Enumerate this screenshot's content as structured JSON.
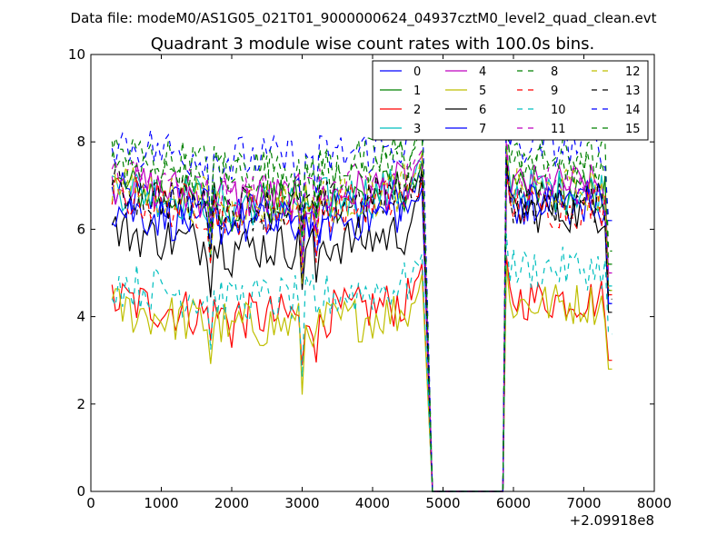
{
  "figure": {
    "suptitle": "Data file: modeM0/AS1G05_021T01_9000000624_04937cztM0_level2_quad_clean.evt"
  },
  "chart_data": {
    "type": "line",
    "title": "Quadrant 3 module wise count rates with 100.0s bins.",
    "xlabel": "",
    "ylabel": "",
    "xlim": [
      0,
      8000
    ],
    "ylim": [
      0,
      10
    ],
    "x_offset_label": "+2.09918e8",
    "x_ticks": [
      0,
      1000,
      2000,
      3000,
      4000,
      5000,
      6000,
      7000,
      8000
    ],
    "x_tick_labels": [
      "0",
      "1000",
      "2000",
      "3000",
      "4000",
      "5000",
      "6000",
      "7000",
      "8000"
    ],
    "y_ticks": [
      0,
      2,
      4,
      6,
      8,
      10
    ],
    "y_tick_labels": [
      "0",
      "2",
      "4",
      "6",
      "8",
      "10"
    ],
    "legend_position": "top-right",
    "bin_seconds": 100.0,
    "segments": [
      {
        "start": 300,
        "end": 4700
      },
      {
        "start": 4900,
        "end": 5800,
        "gap": true
      },
      {
        "start": 5900,
        "end": 7400
      }
    ],
    "series": [
      {
        "name": "0",
        "color": "#0000ff",
        "dash": "solid",
        "base1": 6.8,
        "base2": 6.6,
        "end1": 7.2,
        "end2": 4.3
      },
      {
        "name": "1",
        "color": "#008000",
        "dash": "solid",
        "base1": 7.0,
        "base2": 6.8,
        "end1": 7.4,
        "end2": 4.6
      },
      {
        "name": "2",
        "color": "#ff0000",
        "dash": "solid",
        "base1": 4.4,
        "base2": 4.4,
        "end1": 5.1,
        "end2": 3.0
      },
      {
        "name": "3",
        "color": "#00bfbf",
        "dash": "solid",
        "base1": 7.0,
        "base2": 6.9,
        "end1": 7.6,
        "end2": 4.7
      },
      {
        "name": "4",
        "color": "#bf00bf",
        "dash": "solid",
        "base1": 7.1,
        "base2": 7.0,
        "end1": 7.5,
        "end2": 5.0
      },
      {
        "name": "5",
        "color": "#bfbf00",
        "dash": "solid",
        "base1": 4.2,
        "base2": 4.3,
        "end1": 4.9,
        "end2": 2.8
      },
      {
        "name": "6",
        "color": "#000000",
        "dash": "solid",
        "base1": 6.0,
        "base2": 6.4,
        "end1": 7.3,
        "end2": 4.1
      },
      {
        "name": "7",
        "color": "#0000ff",
        "dash": "solid",
        "base1": 6.5,
        "base2": 6.6,
        "end1": 7.0,
        "end2": 4.3
      },
      {
        "name": "8",
        "color": "#008000",
        "dash": "dashed",
        "base1": 7.8,
        "base2": 7.6,
        "end1": 8.2,
        "end2": 5.5
      },
      {
        "name": "9",
        "color": "#ff0000",
        "dash": "dashed",
        "base1": 6.8,
        "base2": 6.5,
        "end1": 7.0,
        "end2": 4.5
      },
      {
        "name": "10",
        "color": "#00bfbf",
        "dash": "dashed",
        "base1": 4.8,
        "base2": 5.1,
        "end1": 5.6,
        "end2": 3.6
      },
      {
        "name": "11",
        "color": "#bf00bf",
        "dash": "dashed",
        "base1": 7.2,
        "base2": 7.0,
        "end1": 8.0,
        "end2": 4.9
      },
      {
        "name": "12",
        "color": "#bfbf00",
        "dash": "dashed",
        "base1": 7.0,
        "base2": 6.9,
        "end1": 7.6,
        "end2": 4.6
      },
      {
        "name": "13",
        "color": "#000000",
        "dash": "dashed",
        "base1": 6.9,
        "base2": 6.6,
        "end1": 7.3,
        "end2": 4.4
      },
      {
        "name": "14",
        "color": "#0000ff",
        "dash": "dashed",
        "base1": 8.0,
        "base2": 7.9,
        "end1": 9.1,
        "end2": 6.2
      },
      {
        "name": "15",
        "color": "#008000",
        "dash": "dashed",
        "base1": 7.6,
        "base2": 7.5,
        "end1": 8.4,
        "end2": 5.2
      }
    ]
  }
}
